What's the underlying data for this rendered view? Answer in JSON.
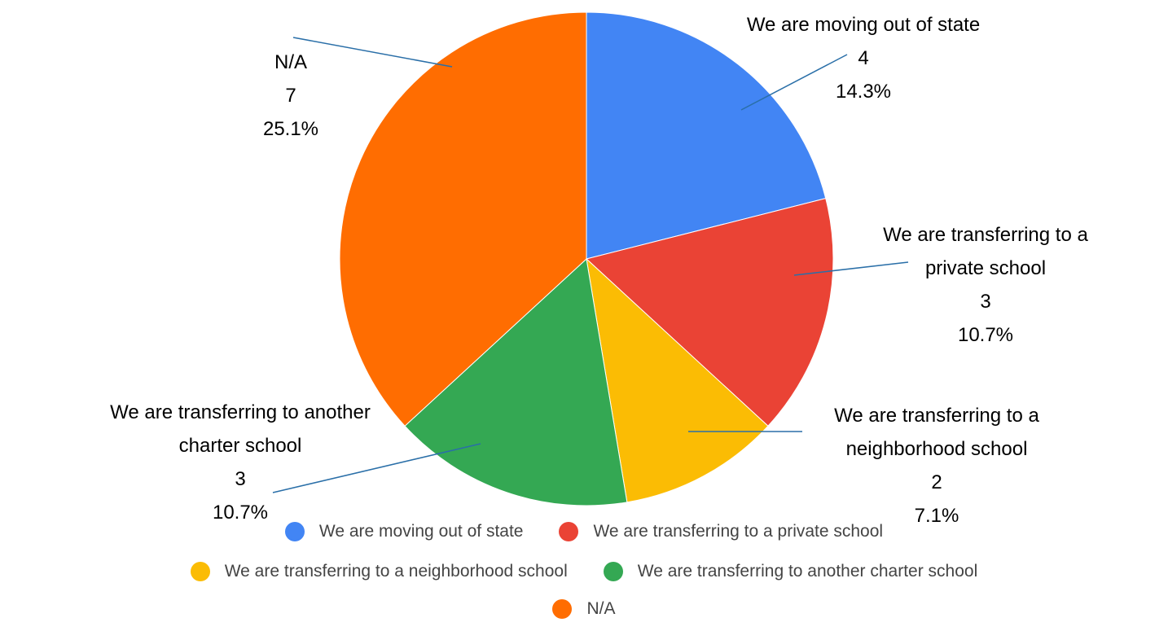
{
  "chart_data": {
    "type": "pie",
    "categories": [
      "We are moving out of state",
      "We are transferring to a private school",
      "We are transferring to a neighborhood school",
      "We are transferring to another charter school",
      "N/A"
    ],
    "values": [
      4,
      3,
      2,
      3,
      7
    ],
    "percent_labels": [
      "14.3%",
      "10.7%",
      "7.1%",
      "10.7%",
      "25.1%"
    ],
    "colors": [
      "#4285f4",
      "#ea4335",
      "#fbbc04",
      "#34a853",
      "#ff6d01"
    ],
    "legend": "bottom"
  }
}
